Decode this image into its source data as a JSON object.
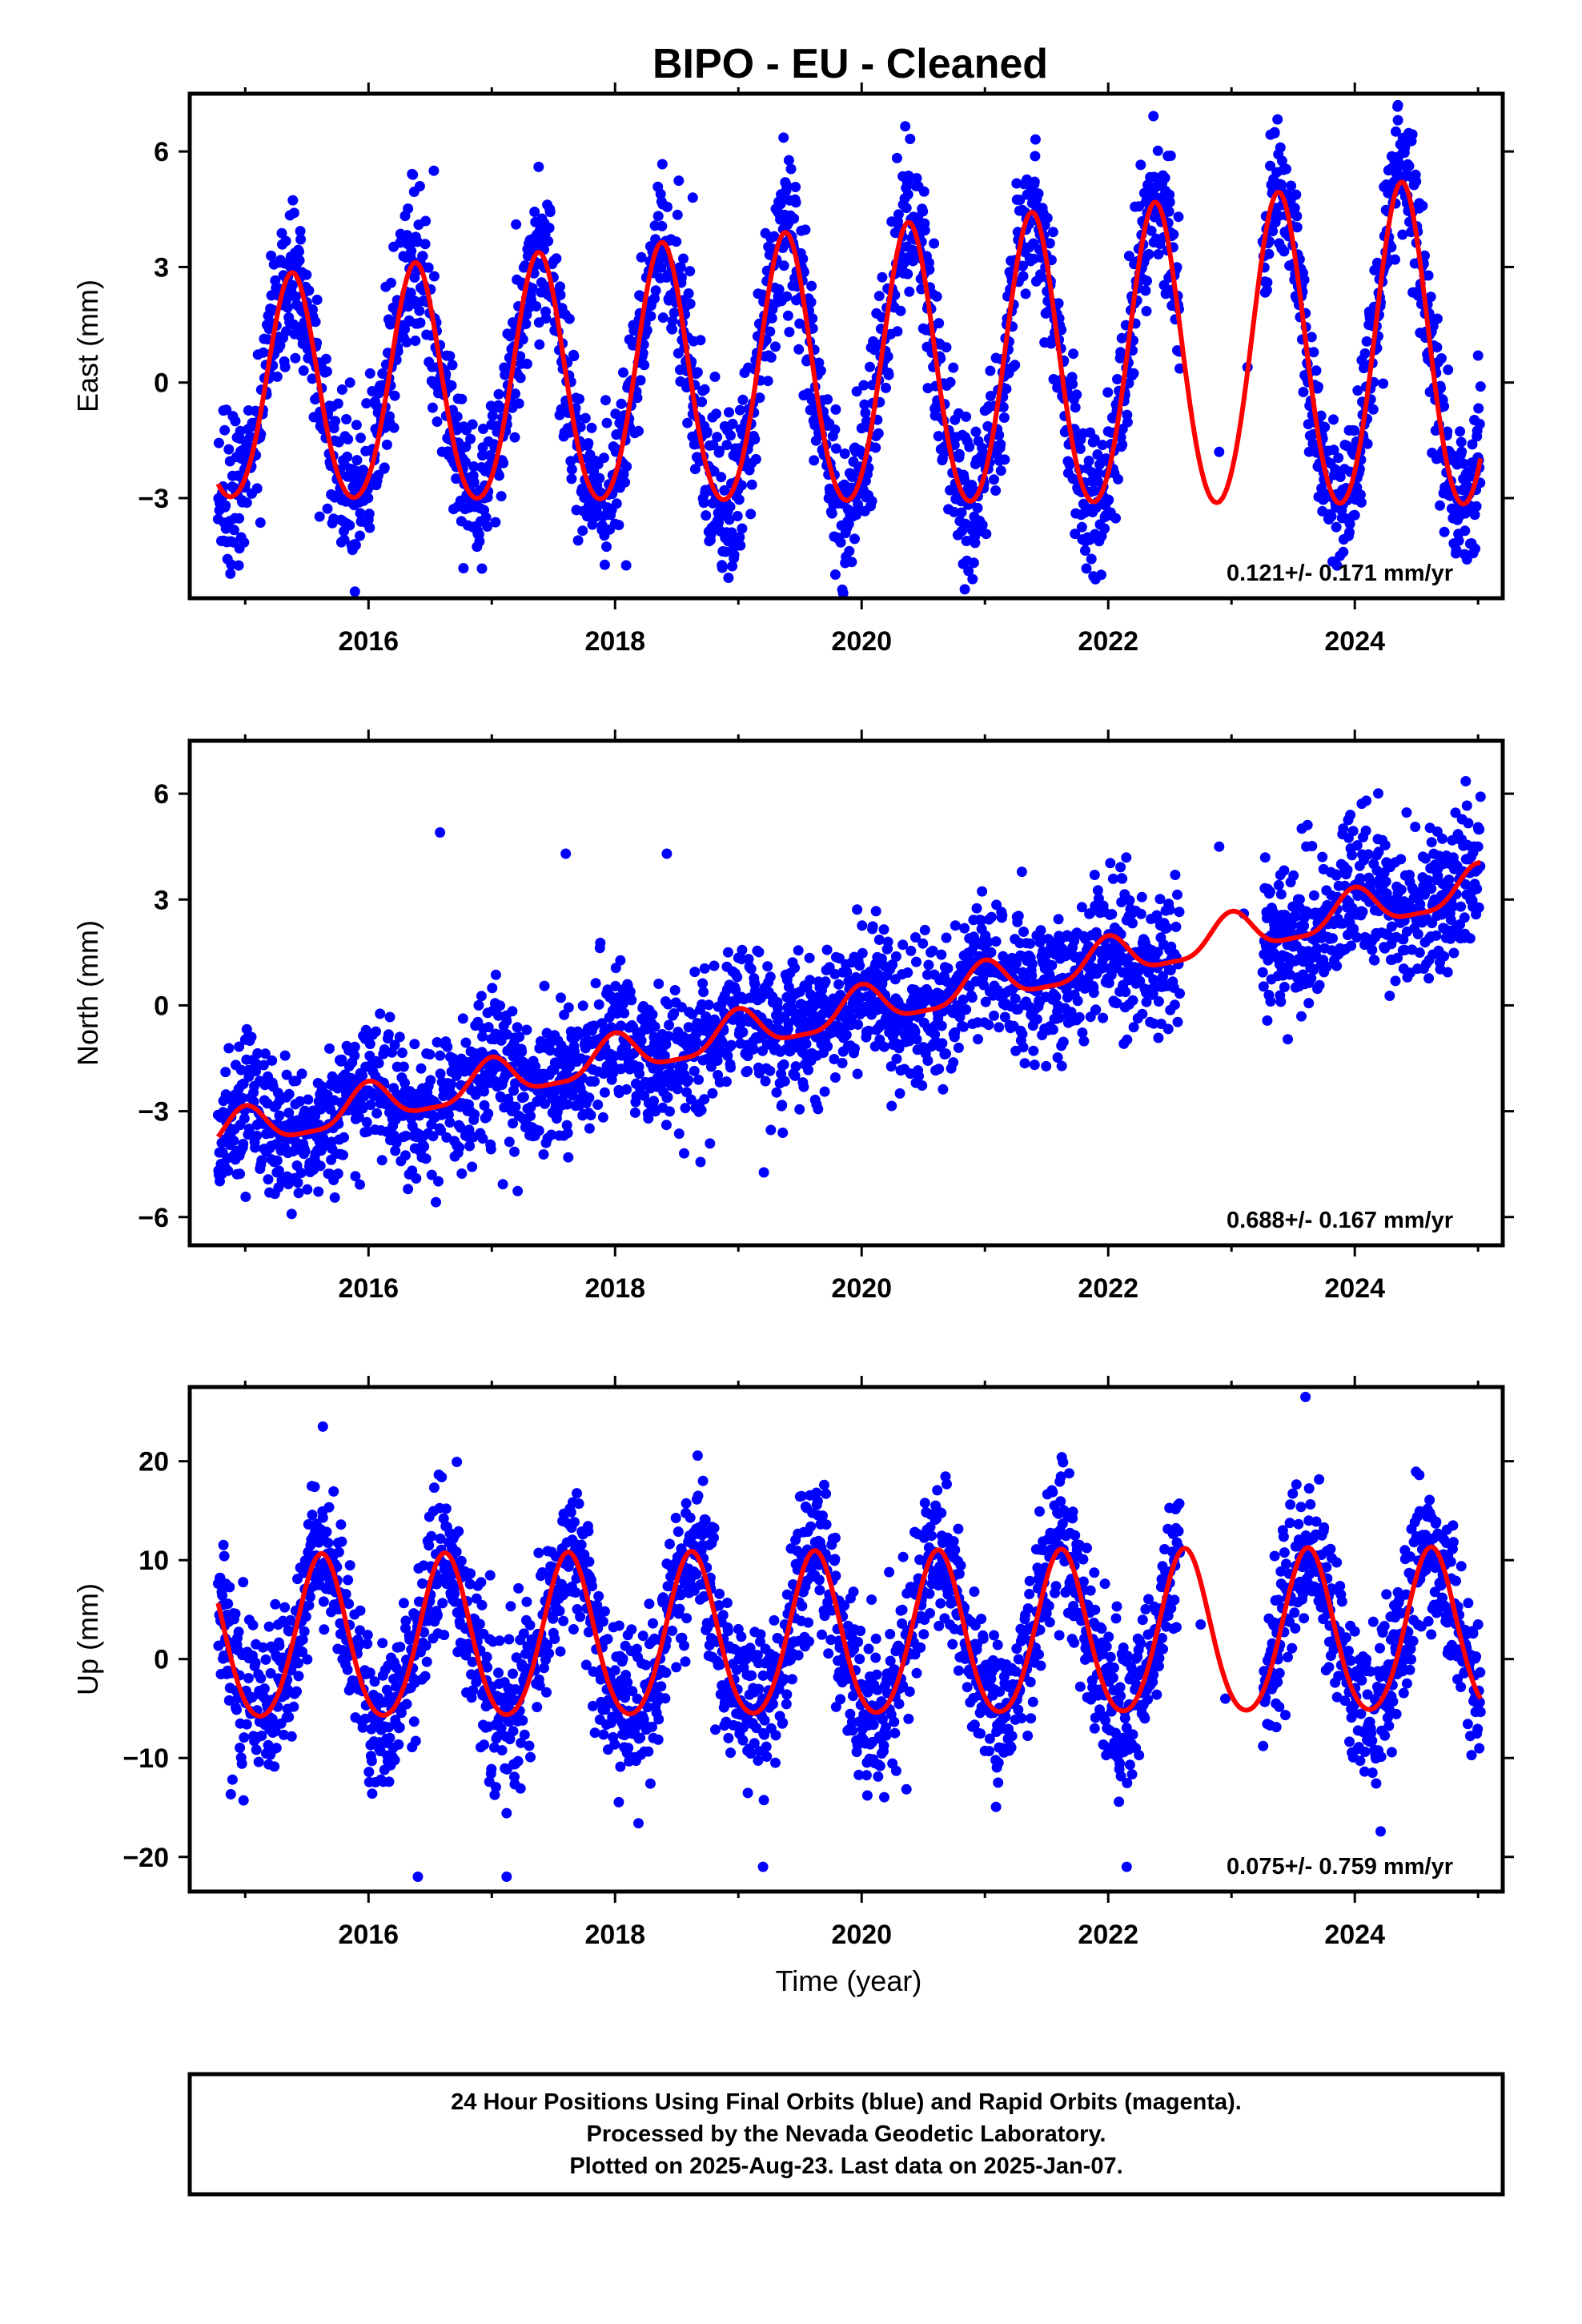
{
  "figure": {
    "title": "BIPO  - EU - Cleaned",
    "xlabel": "Time (year)"
  },
  "colors": {
    "final_orbits": "#0000ff",
    "rapid_orbits": "#ff00ff",
    "model_fit": "#ff0000",
    "frame": "#000000"
  },
  "chart_data": [
    {
      "type": "scatter",
      "panel": "east",
      "title": "",
      "ylabel": "East (mm)",
      "xlabel": "",
      "xlim": [
        2014.55,
        2025.2
      ],
      "ylim": [
        -5.6,
        7.5
      ],
      "xticks": [
        2016,
        2018,
        2020,
        2022,
        2024
      ],
      "yticks": [
        -3,
        0,
        3,
        6
      ],
      "yticklabels": [
        "−3",
        "0",
        "3",
        "6"
      ],
      "rate_label": "0.121+/- 0.171 mm/yr",
      "data_start": 2014.78,
      "data_end": 2025.02,
      "gaps": [
        [
          2022.58,
          2023.25
        ]
      ],
      "fit": {
        "offset": 0.2,
        "trend": 0.121,
        "annual_amp": 2.8,
        "semiannual_amp": 0.3,
        "phase_peak": 2015.38,
        "amp_growth": 0.05
      },
      "scatter_sigma": 1.0,
      "outliers": [
        [
          2016.53,
          5.5
        ],
        [
          2017.38,
          5.6
        ],
        [
          2018.63,
          4.8
        ],
        [
          2019.38,
          5.2
        ],
        [
          2023.35,
          6.5
        ],
        [
          2024.35,
          7.2
        ],
        [
          2022.9,
          -1.8
        ],
        [
          2023.13,
          0.4
        ],
        [
          2025.0,
          0.7
        ]
      ],
      "series": [
        {
          "name": "Final Orbits (blue)",
          "color": "#0000ff"
        },
        {
          "name": "Rapid Orbits (magenta)",
          "color": "#ff00ff"
        }
      ]
    },
    {
      "type": "scatter",
      "panel": "north",
      "title": "",
      "ylabel": "North (mm)",
      "xlabel": "",
      "xlim": [
        2014.55,
        2025.2
      ],
      "ylim": [
        -6.8,
        7.5
      ],
      "xticks": [
        2016,
        2018,
        2020,
        2022,
        2024
      ],
      "yticks": [
        -6,
        -3,
        0,
        3,
        6
      ],
      "yticklabels": [
        "−6",
        "−3",
        "0",
        "3",
        "6"
      ],
      "rate_label": "0.688+/- 0.167 mm/yr",
      "data_start": 2014.78,
      "data_end": 2025.02,
      "gaps": [
        [
          2022.58,
          2023.25
        ]
      ],
      "fit": {
        "offset": -0.1,
        "trend": 0.688,
        "annual_amp": 0.55,
        "semiannual_amp": 0.15,
        "phase_peak": 2015.0,
        "amp_growth": 0.0
      },
      "scatter_sigma": 1.0,
      "outliers": [
        [
          2016.58,
          4.9
        ],
        [
          2017.6,
          4.3
        ],
        [
          2018.42,
          4.3
        ],
        [
          2022.9,
          4.5
        ],
        [
          2023.1,
          2.6
        ],
        [
          2025.0,
          4.5
        ]
      ],
      "series": [
        {
          "name": "Final Orbits (blue)",
          "color": "#0000ff"
        },
        {
          "name": "Rapid Orbits (magenta)",
          "color": "#ff00ff"
        }
      ]
    },
    {
      "type": "scatter",
      "panel": "up",
      "title": "",
      "ylabel": "Up (mm)",
      "xlabel": "Time (year)",
      "xlim": [
        2014.55,
        2025.2
      ],
      "ylim": [
        -23.5,
        27.5
      ],
      "xticks": [
        2016,
        2018,
        2020,
        2022,
        2024
      ],
      "yticks": [
        -20,
        -10,
        0,
        10,
        20
      ],
      "yticklabels": [
        "−20",
        "−10",
        "0",
        "10",
        "20"
      ],
      "rate_label": "0.075+/- 0.759 mm/yr",
      "data_start": 2014.78,
      "data_end": 2025.02,
      "gaps": [
        [
          2022.58,
          2023.25
        ]
      ],
      "fit": {
        "offset": 2.0,
        "trend": 0.075,
        "annual_amp": 8.2,
        "semiannual_amp": 0.8,
        "phase_peak": 2015.62,
        "amp_growth": 0.0
      },
      "scatter_sigma": 4.0,
      "outliers": [
        [
          2015.63,
          23.5
        ],
        [
          2023.6,
          26.5
        ],
        [
          2016.4,
          -22.0
        ],
        [
          2017.12,
          -22.0
        ],
        [
          2019.2,
          -21.0
        ],
        [
          2022.15,
          -21.0
        ],
        [
          2022.75,
          3.5
        ],
        [
          2022.95,
          -4.0
        ],
        [
          2025.0,
          3.5
        ]
      ],
      "series": [
        {
          "name": "Final Orbits (blue)",
          "color": "#0000ff"
        },
        {
          "name": "Rapid Orbits (magenta)",
          "color": "#ff00ff"
        }
      ]
    }
  ],
  "footer": {
    "line1": "24 Hour Positions Using Final Orbits (blue) and Rapid Orbits (magenta).",
    "line2": "Processed by the Nevada Geodetic Laboratory.",
    "line3": "Plotted on 2025-Aug-23. Last data on 2025-Jan-07."
  }
}
